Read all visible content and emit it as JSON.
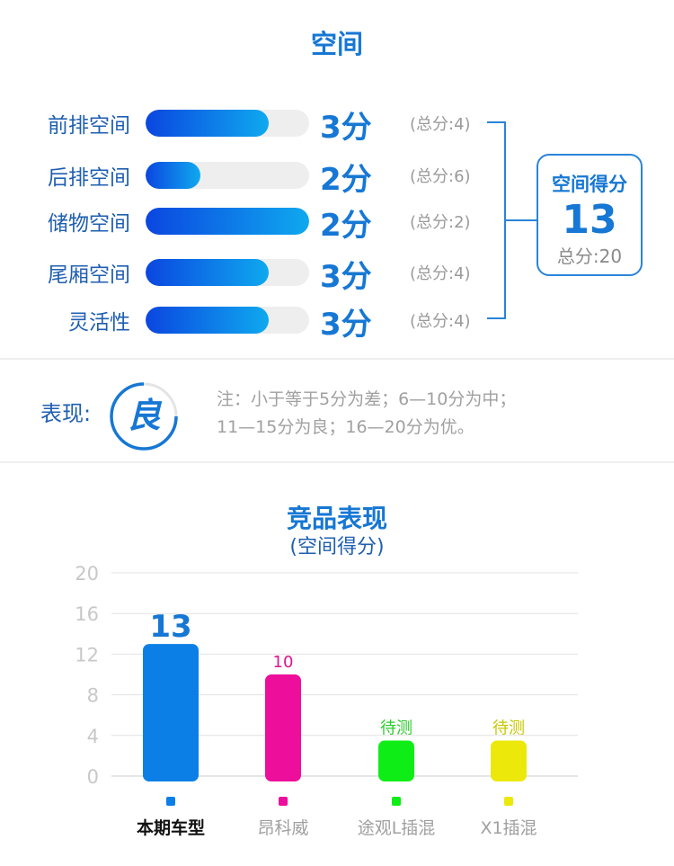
{
  "space": {
    "title": "空间",
    "rows": [
      {
        "label": "前排空间",
        "score": 3,
        "score_text": "3分",
        "max": 4,
        "max_text": "(总分:4)"
      },
      {
        "label": "后排空间",
        "score": 2,
        "score_text": "2分",
        "max": 6,
        "max_text": "(总分:6)"
      },
      {
        "label": "储物空间",
        "score": 2,
        "score_text": "2分",
        "max": 2,
        "max_text": "(总分:2)"
      },
      {
        "label": "尾厢空间",
        "score": 3,
        "score_text": "3分",
        "max": 4,
        "max_text": "(总分:4)"
      },
      {
        "label": "灵活性",
        "score": 3,
        "score_text": "3分",
        "max": 4,
        "max_text": "(总分:4)"
      }
    ],
    "summary": {
      "label": "空间得分",
      "score": "13",
      "total": "总分:20"
    }
  },
  "performance": {
    "label": "表现:",
    "rating": "良",
    "note_line1": "注：小于等于5分为差；6—10分为中；",
    "note_line2": "11—15分为良；16—20分为优。"
  },
  "colors": {
    "accent": "#1677d4",
    "bar_gradient_start": "#0b46e0",
    "bar_gradient_end": "#0fa9ef"
  },
  "chart_data": {
    "type": "bar",
    "title": "竞品表现",
    "subtitle": "(空间得分)",
    "ylim": [
      0,
      20
    ],
    "yticks": [
      "0",
      "4",
      "8",
      "12",
      "16",
      "20"
    ],
    "grid": true,
    "categories": [
      "本期车型",
      "昂科威",
      "途观L插混",
      "X1插混"
    ],
    "values": [
      13,
      10,
      3.5,
      3.5
    ],
    "data_labels": [
      "13",
      "10",
      "待测",
      "待测"
    ],
    "colors": [
      "#0b7fe6",
      "#ee0e9c",
      "#0fed17",
      "#ece80a"
    ],
    "label_colors": [
      "#1677d4",
      "#e0148f",
      "#2ecc2e",
      "#c8c800"
    ],
    "highlight": "本期车型"
  }
}
